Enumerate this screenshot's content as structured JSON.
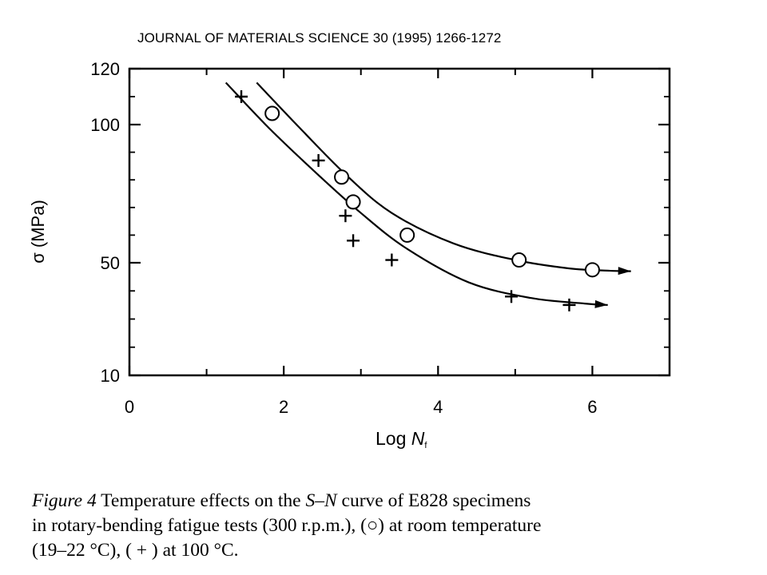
{
  "header": {
    "citation": "JOURNAL OF MATERIALS SCIENCE 30 (1995) 1266-1272"
  },
  "axes": {
    "ylabel": "σ (MPa)",
    "xlabel_prefix": "Log ",
    "xlabel_var": "N",
    "xlabel_sub": "f"
  },
  "caption": {
    "fig_label": "Figure 4",
    "line1_a": " Temperature effects on the ",
    "line1_sn": "S–N",
    "line1_b": " curve of E828 specimens",
    "line2": "in rotary-bending fatigue tests (300 r.p.m.), (○) at room temperature",
    "line3": "(19–22 °C), ( + ) at 100 °C."
  },
  "chart_data": {
    "type": "scatter",
    "xlim": [
      0,
      7
    ],
    "ylim": [
      10,
      120
    ],
    "x_ticks": [
      0,
      2,
      4,
      6
    ],
    "x_minor_ticks": [
      1,
      3,
      5,
      7
    ],
    "y_ticks": [
      10,
      50,
      100,
      120
    ],
    "y_minor_ticks": [
      20,
      30,
      40,
      60,
      70,
      80,
      90,
      110
    ],
    "series": [
      {
        "name": "○",
        "marker": "circle",
        "points": [
          [
            1.85,
            104
          ],
          [
            2.75,
            81
          ],
          [
            2.9,
            72
          ],
          [
            3.6,
            60
          ],
          [
            5.05,
            51
          ],
          [
            6.0,
            47.5
          ]
        ],
        "curve": [
          [
            1.65,
            115
          ],
          [
            2.2,
            99
          ],
          [
            2.8,
            82
          ],
          [
            3.4,
            68
          ],
          [
            4.2,
            57
          ],
          [
            5.0,
            51
          ],
          [
            5.7,
            48
          ],
          [
            6.2,
            47.2
          ],
          [
            6.5,
            47
          ]
        ]
      },
      {
        "name": "+",
        "marker": "plus",
        "points": [
          [
            1.45,
            110
          ],
          [
            2.45,
            87
          ],
          [
            2.8,
            67
          ],
          [
            2.9,
            58
          ],
          [
            3.4,
            51
          ],
          [
            4.95,
            38
          ],
          [
            5.7,
            35
          ]
        ],
        "curve": [
          [
            1.25,
            115
          ],
          [
            1.8,
            99
          ],
          [
            2.4,
            83
          ],
          [
            3.0,
            68
          ],
          [
            3.6,
            55
          ],
          [
            4.4,
            43
          ],
          [
            5.2,
            37.5
          ],
          [
            5.9,
            35.5
          ],
          [
            6.2,
            35
          ]
        ]
      }
    ]
  }
}
